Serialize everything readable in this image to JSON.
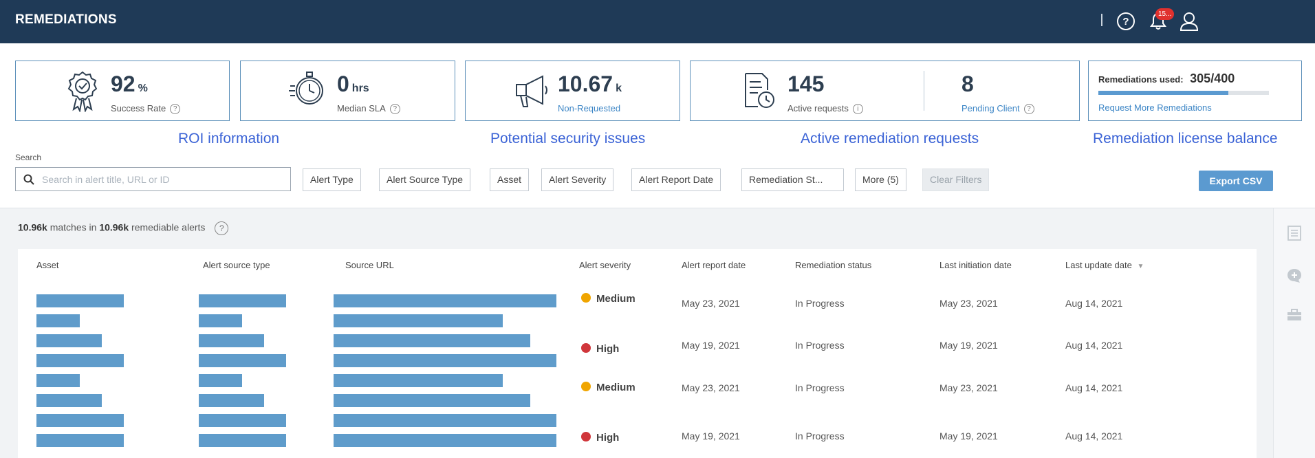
{
  "header": {
    "title": "REMEDIATIONS",
    "notification_count": "15...",
    "help_icon": "help-circle-icon",
    "bell_icon": "bell-icon",
    "user_icon": "user-icon"
  },
  "kpis": {
    "success": {
      "value": "92",
      "unit": "%",
      "label": "Success Rate",
      "icon": "award-ribbon-icon"
    },
    "sla": {
      "value": "0",
      "unit": "hrs",
      "label": "Median SLA",
      "icon": "stopwatch-icon"
    },
    "non_requested": {
      "value": "10.67",
      "unit": "k",
      "label": "Non-Requested",
      "icon": "megaphone-icon"
    },
    "active": {
      "value": "145",
      "label": "Active requests",
      "icon": "document-clock-icon"
    },
    "pending": {
      "value": "8",
      "label": "Pending Client"
    },
    "license": {
      "label": "Remediations used:",
      "value": "305/400",
      "used": 305,
      "total": 400,
      "link": "Request More Remediations"
    }
  },
  "captions": {
    "roi": "ROI information",
    "potential": "Potential security issues",
    "active": "Active remediation requests",
    "license": "Remediation license balance"
  },
  "search": {
    "label": "Search",
    "placeholder": "Search in alert title, URL or ID"
  },
  "filters": [
    "Alert Type",
    "Alert Source Type",
    "Asset",
    "Alert Severity",
    "Alert Report Date",
    "Remediation St...",
    "More (5)"
  ],
  "clear_filters": "Clear Filters",
  "export_label": "Export CSV",
  "summary": {
    "matches": "10.96k",
    "middle": "matches in",
    "total": "10.96k",
    "suffix": "remediable alerts"
  },
  "table": {
    "columns": [
      "Asset",
      "Alert source type",
      "Source URL",
      "Alert severity",
      "Alert report date",
      "Remediation status",
      "Last initiation date",
      "Last update date"
    ],
    "rows": [
      {
        "severity": "Medium",
        "severity_color": "#f0a500",
        "report_date": "May 23, 2021",
        "status": "In Progress",
        "initiation": "May 23, 2021",
        "update": "Aug 14, 2021"
      },
      {
        "severity": "High",
        "severity_color": "#d0363b",
        "report_date": "May 19, 2021",
        "status": "In Progress",
        "initiation": "May 19, 2021",
        "update": "Aug 14, 2021"
      },
      {
        "severity": "Medium",
        "severity_color": "#f0a500",
        "report_date": "May 23, 2021",
        "status": "In Progress",
        "initiation": "May 23, 2021",
        "update": "Aug 14, 2021"
      },
      {
        "severity": "High",
        "severity_color": "#d0363b",
        "report_date": "May 19, 2021",
        "status": "In Progress",
        "initiation": "May 19, 2021",
        "update": "Aug 14, 2021"
      }
    ]
  },
  "colors": {
    "header_bg": "#1f3a57",
    "card_border": "#5b8fb9",
    "redaction": "#5f9ccb",
    "accent": "#3b63d6"
  }
}
